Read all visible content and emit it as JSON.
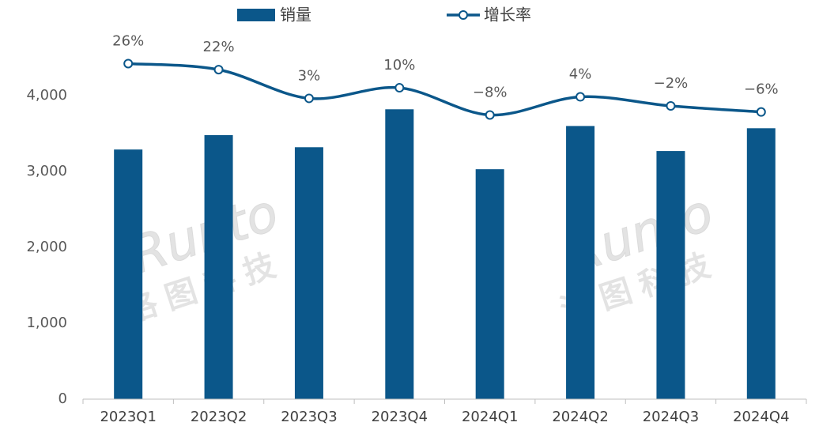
{
  "chart_data": {
    "type": "bar-line",
    "categories": [
      "2023Q1",
      "2023Q2",
      "2023Q3",
      "2023Q4",
      "2024Q1",
      "2024Q2",
      "2024Q3",
      "2024Q4"
    ],
    "series": [
      {
        "name": "销量",
        "type": "bar",
        "color": "#0b578a",
        "values": [
          3290,
          3480,
          3320,
          3820,
          3030,
          3600,
          3270,
          3570
        ]
      },
      {
        "name": "增长率",
        "type": "line",
        "axis": "y2",
        "color": "#0b578a",
        "values": [
          26,
          22,
          3,
          10,
          -8,
          4,
          -2,
          -6
        ],
        "value_labels": [
          "26%",
          "22%",
          "3%",
          "10%",
          "−8%",
          "4%",
          "−2%",
          "−6%"
        ]
      }
    ],
    "ylim": [
      0,
      5000
    ],
    "yticks": [
      0,
      {
        "value": 1000,
        "label": "1,000"
      },
      {
        "value": 2000,
        "label": "2,000"
      },
      {
        "value": 3000,
        "label": "3,000"
      },
      {
        "value": 4000,
        "label": "4,000"
      }
    ],
    "y2lim": [
      -196,
      55
    ],
    "legend": "top",
    "watermark": [
      "Runto",
      "洛图科技"
    ]
  }
}
